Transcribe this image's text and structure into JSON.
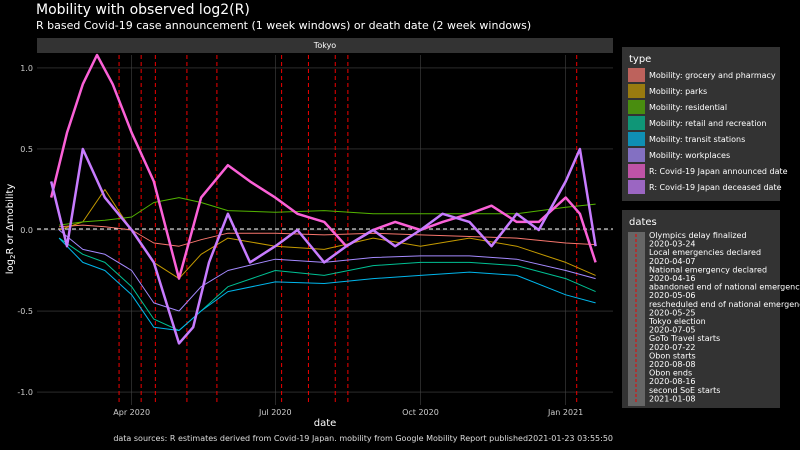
{
  "header": {
    "title": "Mobility with observed log2(R)",
    "subtitle": "R based Covid-19 case announcement (1 week windows) or death date (2 week windows)",
    "caption": "data sources: R estimates derived from Covid-19 Japan. mobility from Google Mobility Report published2021-01-23 03:55:50"
  },
  "chart_data": {
    "type": "line",
    "facet": "Tokyo",
    "xlabel": "date",
    "ylabel_main": "log",
    "ylabel_sub": "2",
    "ylabel_rest": "R or Δmobility",
    "xlim": [
      "2020-02-01",
      "2021-01-31"
    ],
    "ylim": [
      -1.08,
      1.08
    ],
    "x_ticks": [
      {
        "date": "2020-04-01",
        "label": "Apr 2020"
      },
      {
        "date": "2020-07-01",
        "label": "Jul 2020"
      },
      {
        "date": "2020-10-01",
        "label": "Oct 2020"
      },
      {
        "date": "2021-01-01",
        "label": "Jan 2021"
      }
    ],
    "y_ticks": [
      {
        "value": 1.0,
        "label": "1.0"
      },
      {
        "value": 0.5,
        "label": "0.5"
      },
      {
        "value": 0.0,
        "label": "0.0"
      },
      {
        "value": -0.5,
        "label": "-0.5"
      },
      {
        "value": -1.0,
        "label": "-1.0"
      }
    ],
    "series": [
      {
        "name": "Mobility: grocery and pharmacy",
        "color": "#f8766d",
        "points": [
          [
            "2020-02-15",
            0.02
          ],
          [
            "2020-03-01",
            0.03
          ],
          [
            "2020-03-15",
            0.02
          ],
          [
            "2020-04-01",
            0.0
          ],
          [
            "2020-04-15",
            -0.08
          ],
          [
            "2020-05-01",
            -0.1
          ],
          [
            "2020-05-15",
            -0.06
          ],
          [
            "2020-06-01",
            -0.02
          ],
          [
            "2020-07-01",
            -0.02
          ],
          [
            "2020-08-01",
            -0.03
          ],
          [
            "2020-09-01",
            -0.02
          ],
          [
            "2020-10-01",
            -0.03
          ],
          [
            "2020-11-01",
            -0.04
          ],
          [
            "2020-12-01",
            -0.05
          ],
          [
            "2021-01-01",
            -0.08
          ],
          [
            "2021-01-20",
            -0.09
          ]
        ]
      },
      {
        "name": "Mobility: parks",
        "color": "#c49a00",
        "points": [
          [
            "2020-02-15",
            0.0
          ],
          [
            "2020-03-01",
            0.05
          ],
          [
            "2020-03-15",
            0.25
          ],
          [
            "2020-03-25",
            0.1
          ],
          [
            "2020-04-15",
            -0.2
          ],
          [
            "2020-05-01",
            -0.3
          ],
          [
            "2020-05-15",
            -0.15
          ],
          [
            "2020-06-01",
            -0.05
          ],
          [
            "2020-07-01",
            -0.1
          ],
          [
            "2020-08-01",
            -0.12
          ],
          [
            "2020-09-01",
            -0.05
          ],
          [
            "2020-10-01",
            -0.1
          ],
          [
            "2020-11-01",
            -0.05
          ],
          [
            "2020-12-01",
            -0.1
          ],
          [
            "2021-01-01",
            -0.2
          ],
          [
            "2021-01-20",
            -0.28
          ]
        ]
      },
      {
        "name": "Mobility: residential",
        "color": "#53b400",
        "points": [
          [
            "2020-02-15",
            0.03
          ],
          [
            "2020-03-01",
            0.05
          ],
          [
            "2020-03-15",
            0.06
          ],
          [
            "2020-04-01",
            0.08
          ],
          [
            "2020-04-15",
            0.17
          ],
          [
            "2020-05-01",
            0.2
          ],
          [
            "2020-05-15",
            0.17
          ],
          [
            "2020-06-01",
            0.12
          ],
          [
            "2020-07-01",
            0.11
          ],
          [
            "2020-08-01",
            0.12
          ],
          [
            "2020-09-01",
            0.1
          ],
          [
            "2020-10-01",
            0.1
          ],
          [
            "2020-11-01",
            0.1
          ],
          [
            "2020-12-01",
            0.1
          ],
          [
            "2021-01-01",
            0.14
          ],
          [
            "2021-01-20",
            0.16
          ]
        ]
      },
      {
        "name": "Mobility: retail and recreation",
        "color": "#00c094",
        "points": [
          [
            "2020-02-15",
            -0.05
          ],
          [
            "2020-03-01",
            -0.15
          ],
          [
            "2020-03-15",
            -0.2
          ],
          [
            "2020-04-01",
            -0.35
          ],
          [
            "2020-04-15",
            -0.55
          ],
          [
            "2020-05-01",
            -0.62
          ],
          [
            "2020-05-15",
            -0.5
          ],
          [
            "2020-06-01",
            -0.35
          ],
          [
            "2020-07-01",
            -0.25
          ],
          [
            "2020-08-01",
            -0.28
          ],
          [
            "2020-09-01",
            -0.22
          ],
          [
            "2020-10-01",
            -0.2
          ],
          [
            "2020-11-01",
            -0.2
          ],
          [
            "2020-12-01",
            -0.22
          ],
          [
            "2021-01-01",
            -0.3
          ],
          [
            "2021-01-20",
            -0.38
          ]
        ]
      },
      {
        "name": "Mobility: transit stations",
        "color": "#00b6eb",
        "points": [
          [
            "2020-02-15",
            -0.05
          ],
          [
            "2020-03-01",
            -0.2
          ],
          [
            "2020-03-15",
            -0.25
          ],
          [
            "2020-04-01",
            -0.4
          ],
          [
            "2020-04-15",
            -0.6
          ],
          [
            "2020-05-01",
            -0.62
          ],
          [
            "2020-05-15",
            -0.5
          ],
          [
            "2020-06-01",
            -0.38
          ],
          [
            "2020-07-01",
            -0.32
          ],
          [
            "2020-08-01",
            -0.33
          ],
          [
            "2020-09-01",
            -0.3
          ],
          [
            "2020-10-01",
            -0.28
          ],
          [
            "2020-11-01",
            -0.26
          ],
          [
            "2020-12-01",
            -0.28
          ],
          [
            "2021-01-01",
            -0.4
          ],
          [
            "2021-01-20",
            -0.45
          ]
        ]
      },
      {
        "name": "Mobility: workplaces",
        "color": "#a58aff",
        "points": [
          [
            "2020-02-15",
            0.0
          ],
          [
            "2020-03-01",
            -0.12
          ],
          [
            "2020-03-15",
            -0.15
          ],
          [
            "2020-04-01",
            -0.25
          ],
          [
            "2020-04-15",
            -0.45
          ],
          [
            "2020-05-01",
            -0.5
          ],
          [
            "2020-05-15",
            -0.35
          ],
          [
            "2020-06-01",
            -0.25
          ],
          [
            "2020-07-01",
            -0.18
          ],
          [
            "2020-08-01",
            -0.2
          ],
          [
            "2020-09-01",
            -0.17
          ],
          [
            "2020-10-01",
            -0.16
          ],
          [
            "2020-11-01",
            -0.16
          ],
          [
            "2020-12-01",
            -0.18
          ],
          [
            "2021-01-01",
            -0.25
          ],
          [
            "2021-01-20",
            -0.3
          ]
        ]
      },
      {
        "name": "R: Covid-19 Japan announced date",
        "color": "#fb61d7",
        "points": [
          [
            "2020-02-10",
            0.2
          ],
          [
            "2020-02-20",
            0.6
          ],
          [
            "2020-03-01",
            0.9
          ],
          [
            "2020-03-10",
            1.1
          ],
          [
            "2020-03-20",
            0.9
          ],
          [
            "2020-04-01",
            0.6
          ],
          [
            "2020-04-15",
            0.3
          ],
          [
            "2020-05-01",
            -0.3
          ],
          [
            "2020-05-15",
            0.2
          ],
          [
            "2020-06-01",
            0.4
          ],
          [
            "2020-06-15",
            0.3
          ],
          [
            "2020-07-01",
            0.2
          ],
          [
            "2020-07-15",
            0.1
          ],
          [
            "2020-08-01",
            0.05
          ],
          [
            "2020-08-15",
            -0.1
          ],
          [
            "2020-09-01",
            0.0
          ],
          [
            "2020-09-15",
            0.05
          ],
          [
            "2020-10-01",
            0.0
          ],
          [
            "2020-10-15",
            0.05
          ],
          [
            "2020-11-01",
            0.1
          ],
          [
            "2020-11-15",
            0.15
          ],
          [
            "2020-12-01",
            0.05
          ],
          [
            "2020-12-15",
            0.05
          ],
          [
            "2021-01-01",
            0.2
          ],
          [
            "2021-01-10",
            0.1
          ],
          [
            "2021-01-20",
            -0.2
          ]
        ]
      },
      {
        "name": "R: Covid-19 Japan deceased date",
        "color": "#c77cff",
        "points": [
          [
            "2020-02-10",
            0.3
          ],
          [
            "2020-02-20",
            -0.1
          ],
          [
            "2020-03-01",
            0.5
          ],
          [
            "2020-03-15",
            0.2
          ],
          [
            "2020-04-01",
            0.0
          ],
          [
            "2020-04-15",
            -0.2
          ],
          [
            "2020-05-01",
            -0.7
          ],
          [
            "2020-05-10",
            -0.6
          ],
          [
            "2020-05-20",
            -0.2
          ],
          [
            "2020-06-01",
            0.1
          ],
          [
            "2020-06-15",
            -0.2
          ],
          [
            "2020-07-01",
            -0.1
          ],
          [
            "2020-07-15",
            0.0
          ],
          [
            "2020-08-01",
            -0.2
          ],
          [
            "2020-08-15",
            -0.1
          ],
          [
            "2020-09-01",
            0.0
          ],
          [
            "2020-09-15",
            -0.1
          ],
          [
            "2020-10-01",
            0.0
          ],
          [
            "2020-10-15",
            0.1
          ],
          [
            "2020-11-01",
            0.05
          ],
          [
            "2020-11-15",
            -0.1
          ],
          [
            "2020-12-01",
            0.1
          ],
          [
            "2020-12-15",
            0.0
          ],
          [
            "2021-01-01",
            0.3
          ],
          [
            "2021-01-10",
            0.5
          ],
          [
            "2021-01-20",
            -0.1
          ]
        ]
      }
    ],
    "events": [
      {
        "name": "Olympics delay finalized",
        "date": "2020-03-24"
      },
      {
        "name": "Local emergencies declared",
        "date": "2020-04-07"
      },
      {
        "name": "National emergency declared",
        "date": "2020-04-16"
      },
      {
        "name": "abandoned end of national emergency",
        "date": "2020-05-06"
      },
      {
        "name": "rescheduled end of national emergency",
        "date": "2020-05-25"
      },
      {
        "name": "Tokyo election",
        "date": "2020-07-05"
      },
      {
        "name": "GoTo Travel starts",
        "date": "2020-07-22"
      },
      {
        "name": "Obon starts",
        "date": "2020-08-08"
      },
      {
        "name": "Obon ends",
        "date": "2020-08-16"
      },
      {
        "name": "second SoE starts",
        "date": "2021-01-08"
      }
    ],
    "legend_type": {
      "title": "type",
      "placement": "right"
    },
    "legend_dates": {
      "title": "dates",
      "placement": "right"
    },
    "grid": true
  }
}
